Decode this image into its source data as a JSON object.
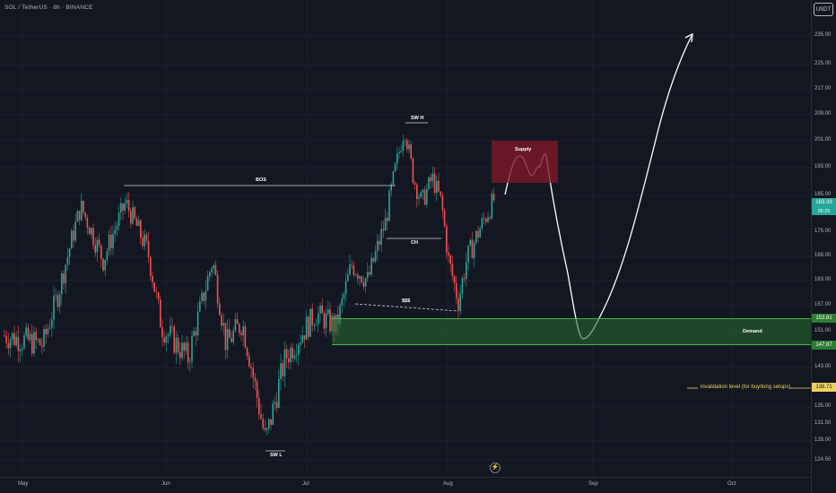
{
  "header": {
    "title": "SOL / TetherUS · 8h · BINANCE",
    "currency_button": "USDT"
  },
  "price_axis": {
    "ticks": [
      "235.00",
      "225.00",
      "217.00",
      "209.00",
      "201.00",
      "193.00",
      "185.00",
      "175.00",
      "169.00",
      "163.00",
      "157.00",
      "151.00",
      "143.00",
      "139.00",
      "135.00",
      "131.50",
      "128.00",
      "124.50"
    ],
    "current_price": "183.39",
    "countdown": "26:25",
    "demand_top": "153.81",
    "demand_bottom": "147.87",
    "invalidation": "138.71"
  },
  "time_axis": {
    "labels": [
      "May",
      "Jun",
      "Jul",
      "Aug",
      "Sep",
      "Oct"
    ]
  },
  "annotations": {
    "bos": "BOS",
    "swh": "SW H",
    "swl": "SW L",
    "ch": "CH",
    "liquidity": "$$$",
    "supply": "Supply",
    "demand": "Demand",
    "invalidation_text": "invalidation level (for buy/long setups)"
  },
  "colors": {
    "up": "#26a69a",
    "down": "#ef5350",
    "supply": "#7d1828",
    "demand": "#2e7d32",
    "invalidation": "#f0d060"
  },
  "chart_data": {
    "type": "candlestick",
    "symbol": "SOL / TetherUS",
    "interval": "8h",
    "exchange": "BINANCE",
    "x_labels": [
      "May",
      "Jun",
      "Jul",
      "Aug",
      "Sep",
      "Oct"
    ],
    "path_close_approx": [
      {
        "month": "May early",
        "price": 150
      },
      {
        "month": "May mid",
        "price": 180
      },
      {
        "month": "May late",
        "price": 175
      },
      {
        "month": "Jun early",
        "price": 150
      },
      {
        "month": "Jun mid",
        "price": 145
      },
      {
        "month": "Jun late",
        "price": 128
      },
      {
        "month": "Jul early",
        "price": 152
      },
      {
        "month": "Jul mid",
        "price": 165
      },
      {
        "month": "Jul late",
        "price": 205
      },
      {
        "month": "Jul end",
        "price": 160
      },
      {
        "month": "Aug early",
        "price": 183.39
      }
    ],
    "zones": {
      "supply": {
        "label": "Supply",
        "low": 190,
        "high": 201
      },
      "demand": {
        "label": "Demand",
        "low": 147.87,
        "high": 153.81
      }
    },
    "levels": {
      "invalidation": 138.71,
      "current": 183.39
    }
  }
}
